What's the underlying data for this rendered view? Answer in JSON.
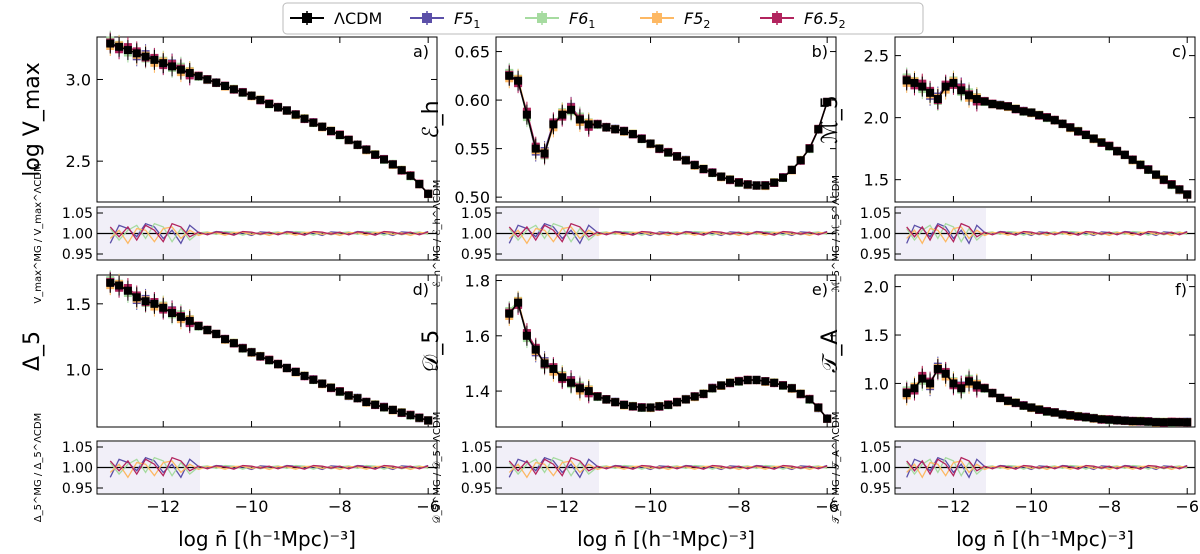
{
  "colors": {
    "LCDM": "#000000",
    "F5_1": "#5b4fa8",
    "F6_1": "#a6dba0",
    "F5_2": "#fdb863",
    "F6.5_2": "#b2245e"
  },
  "legend": [
    {
      "key": "LCDM",
      "label": "ΛCDM"
    },
    {
      "key": "F5_1",
      "label": "F5",
      "sub": "1"
    },
    {
      "key": "F6_1",
      "label": "F6",
      "sub": "1"
    },
    {
      "key": "F5_2",
      "label": "F5",
      "sub": "2"
    },
    {
      "key": "F6.5_2",
      "label": "F6.5",
      "sub": "2"
    }
  ],
  "xlabel": "log n̄ [(h⁻¹Mpc)⁻³]",
  "chart_data": [
    {
      "type": "line",
      "panel": "a)",
      "ylabel": "log V_max",
      "ratio_label": "V_max^MG / V_max^ΛCDM",
      "x": [
        -13.2,
        -13.0,
        -12.8,
        -12.6,
        -12.4,
        -12.2,
        -12.0,
        -11.8,
        -11.6,
        -11.4,
        -11.2,
        -11.0,
        -10.8,
        -10.6,
        -10.4,
        -10.2,
        -10.0,
        -9.8,
        -9.6,
        -9.4,
        -9.2,
        -9.0,
        -8.8,
        -8.6,
        -8.4,
        -8.2,
        -8.0,
        -7.8,
        -7.6,
        -7.4,
        -7.2,
        -7.0,
        -6.8,
        -6.6,
        -6.4,
        -6.2,
        -6.0
      ],
      "y": [
        3.22,
        3.2,
        3.18,
        3.16,
        3.14,
        3.12,
        3.1,
        3.08,
        3.06,
        3.04,
        3.02,
        3.0,
        2.98,
        2.96,
        2.94,
        2.92,
        2.9,
        2.875,
        2.85,
        2.83,
        2.81,
        2.785,
        2.76,
        2.735,
        2.71,
        2.685,
        2.66,
        2.63,
        2.6,
        2.57,
        2.54,
        2.51,
        2.48,
        2.445,
        2.41,
        2.36,
        2.3
      ],
      "ylim": [
        2.25,
        3.26
      ],
      "yticks": [
        2.5,
        3.0
      ],
      "yticklabels": [
        "2.5",
        "3.0"
      ],
      "xlim": [
        -13.5,
        -5.8
      ],
      "ratio_ticks": [
        "1.05",
        "1.00",
        "0.95"
      ]
    },
    {
      "type": "line",
      "panel": "b)",
      "ylabel": "ℰ_h",
      "ratio_label": "ℰ_h^MG / ℰ_h^ΛCDM",
      "x": [
        -13.2,
        -13.0,
        -12.8,
        -12.6,
        -12.4,
        -12.2,
        -12.0,
        -11.8,
        -11.6,
        -11.4,
        -11.2,
        -11.0,
        -10.8,
        -10.6,
        -10.4,
        -10.2,
        -10.0,
        -9.8,
        -9.6,
        -9.4,
        -9.2,
        -9.0,
        -8.8,
        -8.6,
        -8.4,
        -8.2,
        -8.0,
        -7.8,
        -7.6,
        -7.4,
        -7.2,
        -7.0,
        -6.8,
        -6.6,
        -6.4,
        -6.2,
        -6.0
      ],
      "y": [
        0.625,
        0.62,
        0.585,
        0.55,
        0.545,
        0.575,
        0.585,
        0.59,
        0.58,
        0.575,
        0.575,
        0.572,
        0.57,
        0.568,
        0.565,
        0.56,
        0.555,
        0.55,
        0.546,
        0.542,
        0.538,
        0.533,
        0.529,
        0.525,
        0.521,
        0.518,
        0.515,
        0.513,
        0.512,
        0.512,
        0.515,
        0.52,
        0.528,
        0.538,
        0.55,
        0.57,
        0.598
      ],
      "ylim": [
        0.495,
        0.665
      ],
      "yticks": [
        0.5,
        0.55,
        0.6,
        0.65
      ],
      "yticklabels": [
        "0.50",
        "0.55",
        "0.60",
        "0.65"
      ],
      "xlim": [
        -13.5,
        -5.8
      ],
      "ratio_ticks": [
        "1.05",
        "1.00",
        "0.95"
      ]
    },
    {
      "type": "line",
      "panel": "c)",
      "ylabel": "ℳ_5",
      "ratio_label": "ℳ_5^MG / ℳ_5^ΛCDM",
      "x": [
        -13.2,
        -13.0,
        -12.8,
        -12.6,
        -12.4,
        -12.2,
        -12.0,
        -11.8,
        -11.6,
        -11.4,
        -11.2,
        -11.0,
        -10.8,
        -10.6,
        -10.4,
        -10.2,
        -10.0,
        -9.8,
        -9.6,
        -9.4,
        -9.2,
        -9.0,
        -8.8,
        -8.6,
        -8.4,
        -8.2,
        -8.0,
        -7.8,
        -7.6,
        -7.4,
        -7.2,
        -7.0,
        -6.8,
        -6.6,
        -6.4,
        -6.2,
        -6.0
      ],
      "y": [
        2.3,
        2.28,
        2.25,
        2.2,
        2.15,
        2.25,
        2.28,
        2.22,
        2.18,
        2.15,
        2.13,
        2.11,
        2.1,
        2.09,
        2.07,
        2.05,
        2.04,
        2.02,
        2.0,
        1.98,
        1.95,
        1.92,
        1.89,
        1.86,
        1.83,
        1.8,
        1.77,
        1.73,
        1.7,
        1.66,
        1.62,
        1.58,
        1.54,
        1.5,
        1.46,
        1.42,
        1.38
      ],
      "ylim": [
        1.32,
        2.65
      ],
      "yticks": [
        1.5,
        2.0,
        2.5
      ],
      "yticklabels": [
        "1.5",
        "2.0",
        "2.5"
      ],
      "xlim": [
        -13.5,
        -5.8
      ],
      "ratio_ticks": [
        "1.05",
        "1.00",
        "0.95"
      ]
    },
    {
      "type": "line",
      "panel": "d)",
      "ylabel": "Δ_5",
      "ratio_label": "Δ_5^MG / Δ_5^ΛCDM",
      "x": [
        -13.2,
        -13.0,
        -12.8,
        -12.6,
        -12.4,
        -12.2,
        -12.0,
        -11.8,
        -11.6,
        -11.4,
        -11.2,
        -11.0,
        -10.8,
        -10.6,
        -10.4,
        -10.2,
        -10.0,
        -9.8,
        -9.6,
        -9.4,
        -9.2,
        -9.0,
        -8.8,
        -8.6,
        -8.4,
        -8.2,
        -8.0,
        -7.8,
        -7.6,
        -7.4,
        -7.2,
        -7.0,
        -6.8,
        -6.6,
        -6.4,
        -6.2,
        -6.0
      ],
      "y": [
        1.66,
        1.64,
        1.6,
        1.55,
        1.52,
        1.5,
        1.47,
        1.43,
        1.4,
        1.37,
        1.33,
        1.3,
        1.27,
        1.23,
        1.2,
        1.16,
        1.13,
        1.1,
        1.07,
        1.04,
        1.01,
        0.98,
        0.95,
        0.92,
        0.89,
        0.86,
        0.83,
        0.8,
        0.78,
        0.75,
        0.73,
        0.71,
        0.69,
        0.67,
        0.65,
        0.63,
        0.61
      ],
      "ylim": [
        0.56,
        1.72
      ],
      "yticks": [
        1.0,
        1.5
      ],
      "yticklabels": [
        "1.0",
        "1.5"
      ],
      "xlim": [
        -13.5,
        -5.8
      ],
      "ratio_ticks": [
        "1.05",
        "1.00",
        "0.95"
      ]
    },
    {
      "type": "line",
      "panel": "e)",
      "ylabel": "𝒟_5",
      "ratio_label": "𝒟_5^MG / 𝒟_5^ΛCDM",
      "x": [
        -13.2,
        -13.0,
        -12.8,
        -12.6,
        -12.4,
        -12.2,
        -12.0,
        -11.8,
        -11.6,
        -11.4,
        -11.2,
        -11.0,
        -10.8,
        -10.6,
        -10.4,
        -10.2,
        -10.0,
        -9.8,
        -9.6,
        -9.4,
        -9.2,
        -9.0,
        -8.8,
        -8.6,
        -8.4,
        -8.2,
        -8.0,
        -7.8,
        -7.6,
        -7.4,
        -7.2,
        -7.0,
        -6.8,
        -6.6,
        -6.4,
        -6.2,
        -6.0
      ],
      "y": [
        1.68,
        1.72,
        1.6,
        1.55,
        1.5,
        1.48,
        1.45,
        1.43,
        1.41,
        1.4,
        1.38,
        1.37,
        1.36,
        1.35,
        1.345,
        1.34,
        1.34,
        1.345,
        1.35,
        1.36,
        1.37,
        1.38,
        1.39,
        1.41,
        1.42,
        1.43,
        1.435,
        1.44,
        1.44,
        1.435,
        1.43,
        1.42,
        1.41,
        1.39,
        1.37,
        1.34,
        1.3
      ],
      "ylim": [
        1.27,
        1.82
      ],
      "yticks": [
        1.4,
        1.6,
        1.8
      ],
      "yticklabels": [
        "1.4",
        "1.6",
        "1.8"
      ],
      "xlim": [
        -13.5,
        -5.8
      ],
      "ratio_ticks": [
        "1.05",
        "1.00",
        "0.95"
      ]
    },
    {
      "type": "line",
      "panel": "f)",
      "ylabel": "𝒯_A",
      "ratio_label": "𝒯_A^MG / 𝒯_A^ΛCDM",
      "x": [
        -13.2,
        -13.0,
        -12.8,
        -12.6,
        -12.4,
        -12.2,
        -12.0,
        -11.8,
        -11.6,
        -11.4,
        -11.2,
        -11.0,
        -10.8,
        -10.6,
        -10.4,
        -10.2,
        -10.0,
        -9.8,
        -9.6,
        -9.4,
        -9.2,
        -9.0,
        -8.8,
        -8.6,
        -8.4,
        -8.2,
        -8.0,
        -7.8,
        -7.6,
        -7.4,
        -7.2,
        -7.0,
        -6.8,
        -6.6,
        -6.4,
        -6.2,
        -6.0
      ],
      "y": [
        0.9,
        0.95,
        1.05,
        1.0,
        1.15,
        1.1,
        1.0,
        0.95,
        1.02,
        0.98,
        0.95,
        0.9,
        0.85,
        0.82,
        0.8,
        0.77,
        0.75,
        0.73,
        0.71,
        0.7,
        0.68,
        0.67,
        0.66,
        0.65,
        0.64,
        0.63,
        0.625,
        0.62,
        0.615,
        0.61,
        0.61,
        0.605,
        0.6,
        0.6,
        0.6,
        0.6,
        0.6
      ],
      "ylim": [
        0.55,
        2.12
      ],
      "yticks": [
        1.0,
        1.5,
        2.0
      ],
      "yticklabels": [
        "1.0",
        "1.5",
        "2.0"
      ],
      "xlim": [
        -13.5,
        -5.8
      ],
      "ratio_ticks": [
        "1.05",
        "1.00",
        "0.95"
      ]
    }
  ],
  "models": {
    "F5_1": {
      "offsets": [
        0.4,
        -0.3,
        0.2,
        -0.6,
        0.5,
        0.3,
        -0.2,
        0.6
      ]
    },
    "F6_1": {
      "offsets": [
        0.6,
        0.4,
        -0.5,
        0.3,
        -0.4,
        0.2,
        0.5,
        -0.3
      ]
    },
    "F5_2": {
      "offsets": [
        -0.5,
        0.3,
        0.4,
        -0.3,
        0.2,
        -0.6,
        0.3,
        0.2
      ]
    },
    "F6.5_2": {
      "offsets": [
        0.2,
        -0.5,
        0.6,
        0.4,
        -0.2,
        0.4,
        -0.4,
        0.5
      ]
    }
  },
  "xticks": [
    -12,
    -10,
    -8,
    -6
  ],
  "xticklabels": [
    "−12",
    "−10",
    "−8",
    "−6"
  ]
}
